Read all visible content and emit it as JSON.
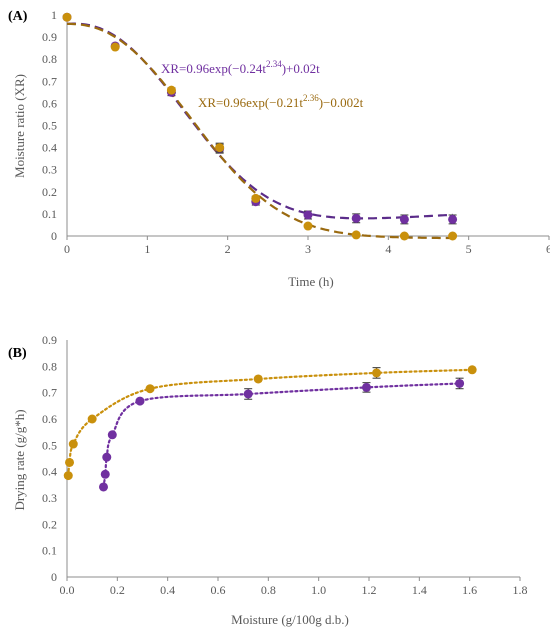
{
  "colors": {
    "purple": "#7030a0",
    "orange": "#c9900c",
    "model_a_purple": "#5b2c8a",
    "model_a_orange": "#9a6a10",
    "axis": "#8c8c8c",
    "text": "#595959"
  },
  "chart_data": [
    {
      "type": "scatter",
      "panel_label": "(A)",
      "xlabel": "Time (h)",
      "ylabel": "Moisture ratio (XR)",
      "xlim": [
        0,
        6
      ],
      "ylim": [
        0,
        1
      ],
      "xticks": [
        "0",
        "1",
        "2",
        "3",
        "4",
        "5",
        "6"
      ],
      "yticks": [
        "0",
        "0.1",
        "0.2",
        "0.3",
        "0.4",
        "0.5",
        "0.6",
        "0.7",
        "0.8",
        "0.9",
        "1"
      ],
      "grid": false,
      "series": [
        {
          "color": "purple",
          "points": [
            {
              "x": 0,
              "y": 0.99,
              "err": 0
            },
            {
              "x": 0.6,
              "y": 0.86,
              "err": 0
            },
            {
              "x": 1.3,
              "y": 0.65,
              "err": 0.015
            },
            {
              "x": 1.9,
              "y": 0.395,
              "err": 0.02
            },
            {
              "x": 2.35,
              "y": 0.155,
              "err": 0.015
            },
            {
              "x": 3.0,
              "y": 0.095,
              "err": 0.018
            },
            {
              "x": 3.6,
              "y": 0.08,
              "err": 0.02
            },
            {
              "x": 4.2,
              "y": 0.075,
              "err": 0.02
            },
            {
              "x": 4.8,
              "y": 0.075,
              "err": 0.02
            }
          ],
          "model": {
            "a": 0.96,
            "k": 0.24,
            "n": 2.34,
            "b": 0.02,
            "style": "dashed"
          },
          "equation": {
            "base": "XR=0.96exp(−0.24t",
            "exp": "2.34",
            "tail": ")+0.02t"
          }
        },
        {
          "color": "orange",
          "points": [
            {
              "x": 0,
              "y": 0.99,
              "err": 0
            },
            {
              "x": 0.6,
              "y": 0.855,
              "err": 0
            },
            {
              "x": 1.3,
              "y": 0.66,
              "err": 0.01
            },
            {
              "x": 1.9,
              "y": 0.4,
              "err": 0.02
            },
            {
              "x": 2.35,
              "y": 0.17,
              "err": 0.01
            },
            {
              "x": 3.0,
              "y": 0.045,
              "err": 0
            },
            {
              "x": 3.6,
              "y": 0.005,
              "err": 0
            },
            {
              "x": 4.2,
              "y": 0.0,
              "err": 0
            },
            {
              "x": 4.8,
              "y": 0.0,
              "err": 0
            }
          ],
          "model": {
            "a": 0.96,
            "k": 0.21,
            "n": 2.36,
            "b": -0.002,
            "style": "dashed"
          },
          "equation": {
            "base": "XR=0.96exp(−0.21t",
            "exp": "2.36",
            "tail": ")−0.002t"
          }
        }
      ]
    },
    {
      "type": "scatter",
      "panel_label": "(B)",
      "xlabel": "Moisture (g/100g d.b.)",
      "ylabel": "Drying rate (g/g*h)",
      "xlim": [
        0,
        1.8
      ],
      "ylim": [
        0,
        0.9
      ],
      "xticks": [
        "0.0",
        "0.2",
        "0.4",
        "0.6",
        "0.8",
        "1.0",
        "1.2",
        "1.4",
        "1.6",
        "1.8"
      ],
      "yticks": [
        "0",
        "0.1",
        "0.2",
        "0.3",
        "0.4",
        "0.5",
        "0.6",
        "0.7",
        "0.8",
        "0.9"
      ],
      "grid": false,
      "series": [
        {
          "color": "orange",
          "points": [
            {
              "x": 0.005,
              "y": 0.385,
              "err": 0
            },
            {
              "x": 0.01,
              "y": 0.435,
              "err": 0
            },
            {
              "x": 0.025,
              "y": 0.505,
              "err": 0
            },
            {
              "x": 0.1,
              "y": 0.6,
              "err": 0
            },
            {
              "x": 0.33,
              "y": 0.715,
              "err": 0
            },
            {
              "x": 0.76,
              "y": 0.752,
              "err": 0
            },
            {
              "x": 1.23,
              "y": 0.775,
              "err": 0.02
            },
            {
              "x": 1.61,
              "y": 0.787,
              "err": 0
            }
          ],
          "trend": {
            "style": "dotted"
          }
        },
        {
          "color": "purple",
          "points": [
            {
              "x": 0.145,
              "y": 0.342,
              "err": 0
            },
            {
              "x": 0.152,
              "y": 0.39,
              "err": 0
            },
            {
              "x": 0.158,
              "y": 0.455,
              "err": 0
            },
            {
              "x": 0.18,
              "y": 0.54,
              "err": 0
            },
            {
              "x": 0.29,
              "y": 0.668,
              "err": 0
            },
            {
              "x": 0.72,
              "y": 0.695,
              "err": 0.02
            },
            {
              "x": 1.19,
              "y": 0.72,
              "err": 0.018
            },
            {
              "x": 1.56,
              "y": 0.735,
              "err": 0.02
            }
          ],
          "trend": {
            "style": "dotted"
          }
        }
      ]
    }
  ]
}
